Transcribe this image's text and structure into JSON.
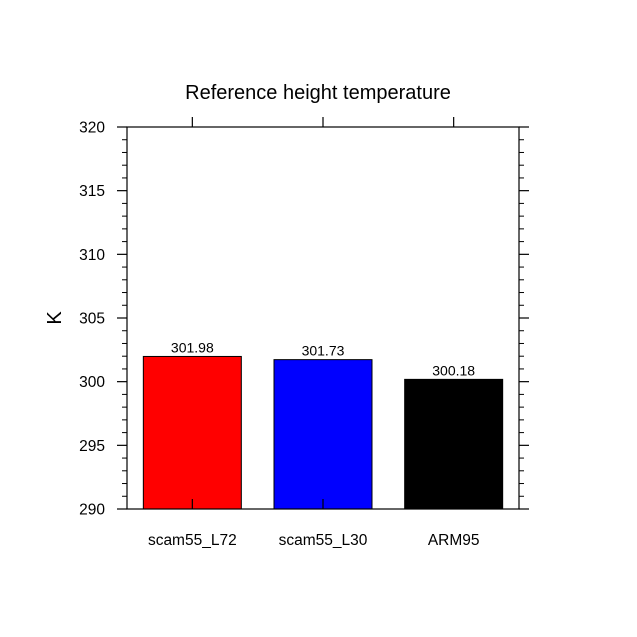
{
  "chart_data": {
    "type": "bar",
    "title": "Reference height temperature",
    "xlabel": "",
    "ylabel": "K",
    "categories": [
      "scam55_L72",
      "scam55_L30",
      "ARM95"
    ],
    "values": [
      301.98,
      301.73,
      300.18
    ],
    "value_labels": [
      "301.98",
      "301.73",
      "300.18"
    ],
    "colors": [
      "#ff0000",
      "#0000ff",
      "#000000"
    ],
    "ylim": [
      290,
      320
    ],
    "yticks": [
      290,
      295,
      300,
      305,
      310,
      315,
      320
    ],
    "ytick_labels": [
      "290",
      "295",
      "300",
      "305",
      "310",
      "315",
      "320"
    ],
    "grid": false,
    "legend": "none"
  }
}
